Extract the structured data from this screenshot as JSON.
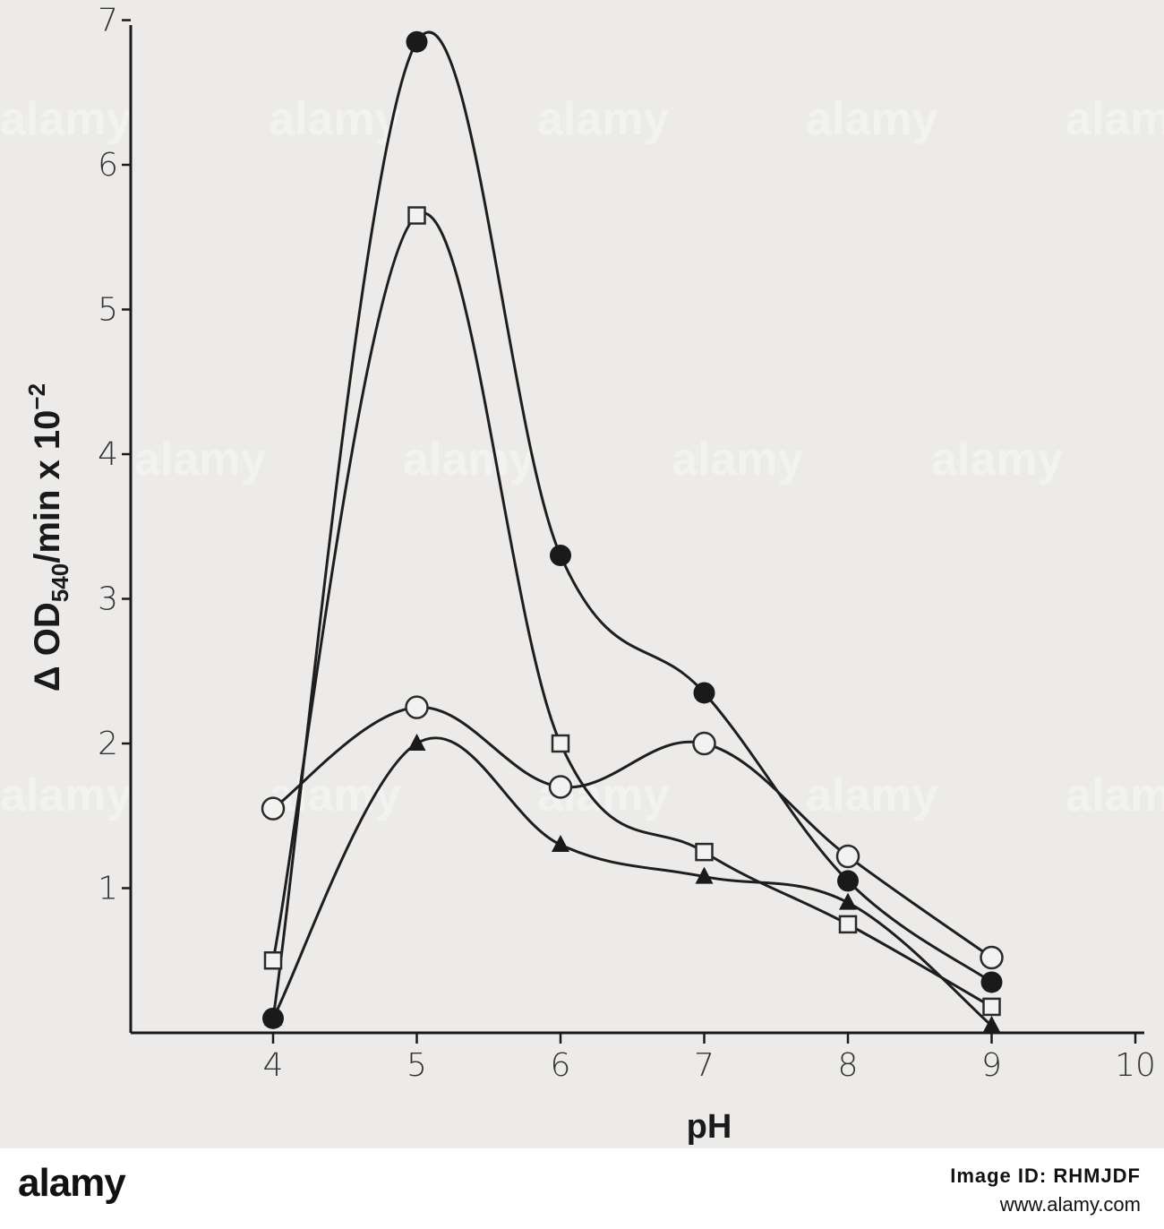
{
  "chart_data": {
    "type": "line",
    "xlabel": "pH",
    "ylabel": "Δ OD",
    "ylabel_sub": "540",
    "ylabel_suffix": "/min x 10",
    "ylabel_exp": "−2",
    "xlim": [
      3,
      10
    ],
    "ylim": [
      0,
      7
    ],
    "xticks": [
      4,
      5,
      6,
      7,
      8,
      9,
      10
    ],
    "yticks": [
      1,
      2,
      3,
      4,
      5,
      6,
      7
    ],
    "grid": false,
    "series": [
      {
        "marker": "filled-circle",
        "x": [
          4,
          5,
          6,
          7,
          8,
          9
        ],
        "y": [
          0.1,
          6.85,
          3.3,
          2.35,
          1.05,
          0.35
        ]
      },
      {
        "marker": "open-square",
        "x": [
          4,
          5,
          6,
          7,
          8,
          9
        ],
        "y": [
          0.5,
          5.65,
          2.0,
          1.25,
          0.75,
          0.18
        ]
      },
      {
        "marker": "open-circle",
        "x": [
          4,
          5,
          6,
          7,
          8,
          9
        ],
        "y": [
          1.55,
          2.25,
          1.7,
          2.0,
          1.22,
          0.52
        ]
      },
      {
        "marker": "filled-triangle",
        "x": [
          4,
          5,
          6,
          7,
          8,
          9
        ],
        "y": [
          0.1,
          2.0,
          1.3,
          1.08,
          0.9,
          0.05
        ]
      }
    ]
  },
  "watermark": {
    "text": "alamy"
  },
  "stock_bar": {
    "logo": "alamy",
    "image_id": "Image ID: RHMJDF",
    "url": "www.alamy.com"
  }
}
